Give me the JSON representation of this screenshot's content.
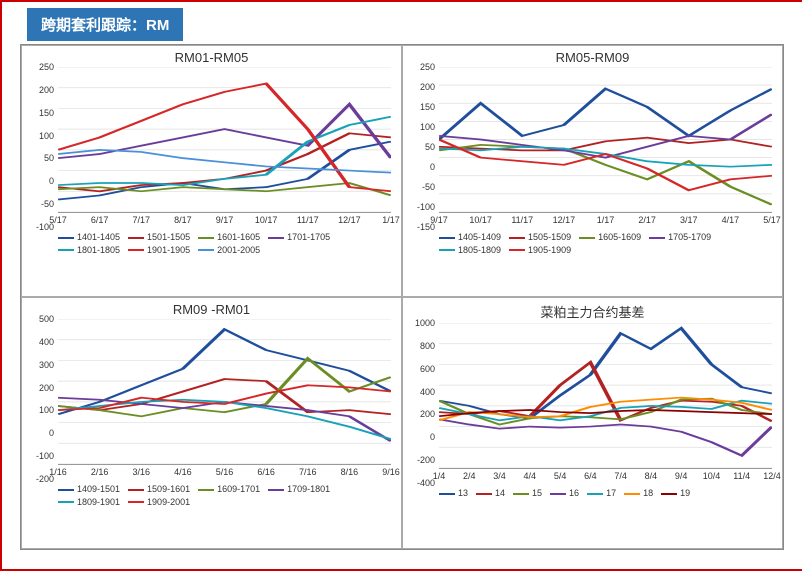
{
  "header_title": "跨期套利跟踪：RM",
  "border_color": "#c00",
  "header_bg": "#2e75b6",
  "charts": [
    {
      "title": "RM01-RM05",
      "type": "line",
      "ylim": [
        -100,
        250
      ],
      "yticks": [
        -100,
        -50,
        0,
        50,
        100,
        150,
        200,
        250
      ],
      "xticks": [
        "5/17",
        "6/17",
        "7/17",
        "8/17",
        "9/17",
        "10/17",
        "11/17",
        "12/17",
        "1/17"
      ],
      "series": [
        {
          "name": "1401-1405",
          "color": "#1f4e9c",
          "data": [
            -70,
            -60,
            -40,
            -30,
            -45,
            -40,
            -20,
            50,
            70
          ]
        },
        {
          "name": "1501-1505",
          "color": "#b22222",
          "data": [
            -40,
            -50,
            -35,
            -30,
            -20,
            0,
            40,
            90,
            80
          ]
        },
        {
          "name": "1601-1605",
          "color": "#6b8e23",
          "data": [
            -45,
            -40,
            -50,
            -40,
            -45,
            -50,
            -40,
            -30,
            -60
          ]
        },
        {
          "name": "1701-1705",
          "color": "#6a3d9a",
          "data": [
            30,
            40,
            60,
            80,
            100,
            80,
            60,
            160,
            30
          ]
        },
        {
          "name": "1801-1805",
          "color": "#17a2b8",
          "data": [
            -35,
            -30,
            -30,
            -35,
            -20,
            -10,
            70,
            110,
            130
          ]
        },
        {
          "name": "1901-1905",
          "color": "#d62728",
          "data": [
            50,
            80,
            120,
            160,
            190,
            210,
            100,
            -40,
            -50
          ]
        },
        {
          "name": "2001-2005",
          "color": "#4a90d9",
          "data": [
            40,
            50,
            45,
            30,
            20,
            10,
            5,
            0,
            -5
          ]
        }
      ]
    },
    {
      "title": "RM05-RM09",
      "type": "line",
      "ylim": [
        -150,
        250
      ],
      "yticks": [
        -150,
        -100,
        -50,
        0,
        50,
        100,
        150,
        200,
        250
      ],
      "xticks": [
        "9/17",
        "10/17",
        "11/17",
        "12/17",
        "1/17",
        "2/17",
        "3/17",
        "4/17",
        "5/17"
      ],
      "series": [
        {
          "name": "1405-1409",
          "color": "#1f4e9c",
          "data": [
            50,
            150,
            60,
            90,
            190,
            140,
            60,
            130,
            190
          ]
        },
        {
          "name": "1505-1509",
          "color": "#b22222",
          "data": [
            30,
            25,
            20,
            20,
            45,
            55,
            40,
            50,
            30
          ]
        },
        {
          "name": "1605-1609",
          "color": "#6b8e23",
          "data": [
            20,
            35,
            30,
            25,
            -20,
            -60,
            -10,
            -80,
            -130
          ]
        },
        {
          "name": "1705-1709",
          "color": "#6a3d9a",
          "data": [
            60,
            50,
            35,
            20,
            0,
            30,
            60,
            50,
            120
          ]
        },
        {
          "name": "1805-1809",
          "color": "#17a2b8",
          "data": [
            25,
            20,
            30,
            25,
            10,
            -10,
            -20,
            -25,
            -20
          ]
        },
        {
          "name": "1905-1909",
          "color": "#d62728",
          "data": [
            50,
            0,
            -10,
            -20,
            10,
            -30,
            -90,
            -60,
            -50
          ]
        }
      ]
    },
    {
      "title": "RM09 -RM01",
      "type": "line",
      "ylim": [
        -200,
        500
      ],
      "yticks": [
        -200,
        -100,
        0,
        100,
        200,
        300,
        400,
        500
      ],
      "xticks": [
        "1/16",
        "2/16",
        "3/16",
        "4/16",
        "5/16",
        "6/16",
        "7/16",
        "8/16",
        "9/16"
      ],
      "series": [
        {
          "name": "1409-1501",
          "color": "#1f4e9c",
          "data": [
            40,
            100,
            180,
            260,
            450,
            350,
            300,
            250,
            150
          ]
        },
        {
          "name": "1509-1601",
          "color": "#b22222",
          "data": [
            80,
            60,
            90,
            150,
            210,
            200,
            50,
            60,
            40
          ]
        },
        {
          "name": "1609-1701",
          "color": "#6b8e23",
          "data": [
            80,
            60,
            30,
            70,
            50,
            90,
            310,
            150,
            220
          ]
        },
        {
          "name": "1709-1801",
          "color": "#6a3d9a",
          "data": [
            120,
            110,
            90,
            70,
            100,
            80,
            60,
            30,
            -90
          ]
        },
        {
          "name": "1809-1901",
          "color": "#17a2b8",
          "data": [
            60,
            80,
            100,
            110,
            100,
            70,
            30,
            -20,
            -80
          ]
        },
        {
          "name": "1909-2001",
          "color": "#d62728",
          "data": [
            60,
            70,
            120,
            100,
            90,
            140,
            180,
            170,
            150
          ]
        }
      ]
    },
    {
      "title": "菜粕主力合约基差",
      "type": "line",
      "ylim": [
        -400,
        1000
      ],
      "yticks": [
        -400,
        -200,
        0,
        200,
        400,
        600,
        800,
        1000
      ],
      "xticks": [
        "1/4",
        "2/4",
        "3/4",
        "4/4",
        "5/4",
        "6/4",
        "7/4",
        "8/4",
        "9/4",
        "10/4",
        "11/4",
        "12/4"
      ],
      "series": [
        {
          "name": "13",
          "color": "#1f4e9c",
          "data": [
            250,
            200,
            120,
            80,
            300,
            500,
            900,
            750,
            950,
            600,
            380,
            320
          ]
        },
        {
          "name": "14",
          "color": "#b22222",
          "data": [
            140,
            120,
            150,
            100,
            400,
            620,
            60,
            180,
            250,
            240,
            200,
            50
          ]
        },
        {
          "name": "15",
          "color": "#6b8e23",
          "data": [
            250,
            120,
            20,
            80,
            100,
            90,
            70,
            140,
            260,
            270,
            160,
            120
          ]
        },
        {
          "name": "16",
          "color": "#6a3d9a",
          "data": [
            70,
            20,
            -20,
            0,
            -10,
            0,
            20,
            0,
            -50,
            -150,
            -280,
            0
          ]
        },
        {
          "name": "17",
          "color": "#17a2b8",
          "data": [
            180,
            120,
            60,
            100,
            60,
            100,
            180,
            200,
            190,
            170,
            250,
            220
          ]
        },
        {
          "name": "18",
          "color": "#ff8c00",
          "data": [
            60,
            140,
            120,
            90,
            100,
            190,
            240,
            260,
            280,
            260,
            230,
            160
          ]
        },
        {
          "name": "19",
          "color": "#8b0000",
          "data": [
            100,
            130,
            150,
            160,
            140,
            130,
            150,
            160,
            150,
            140,
            130,
            120
          ]
        }
      ]
    }
  ]
}
